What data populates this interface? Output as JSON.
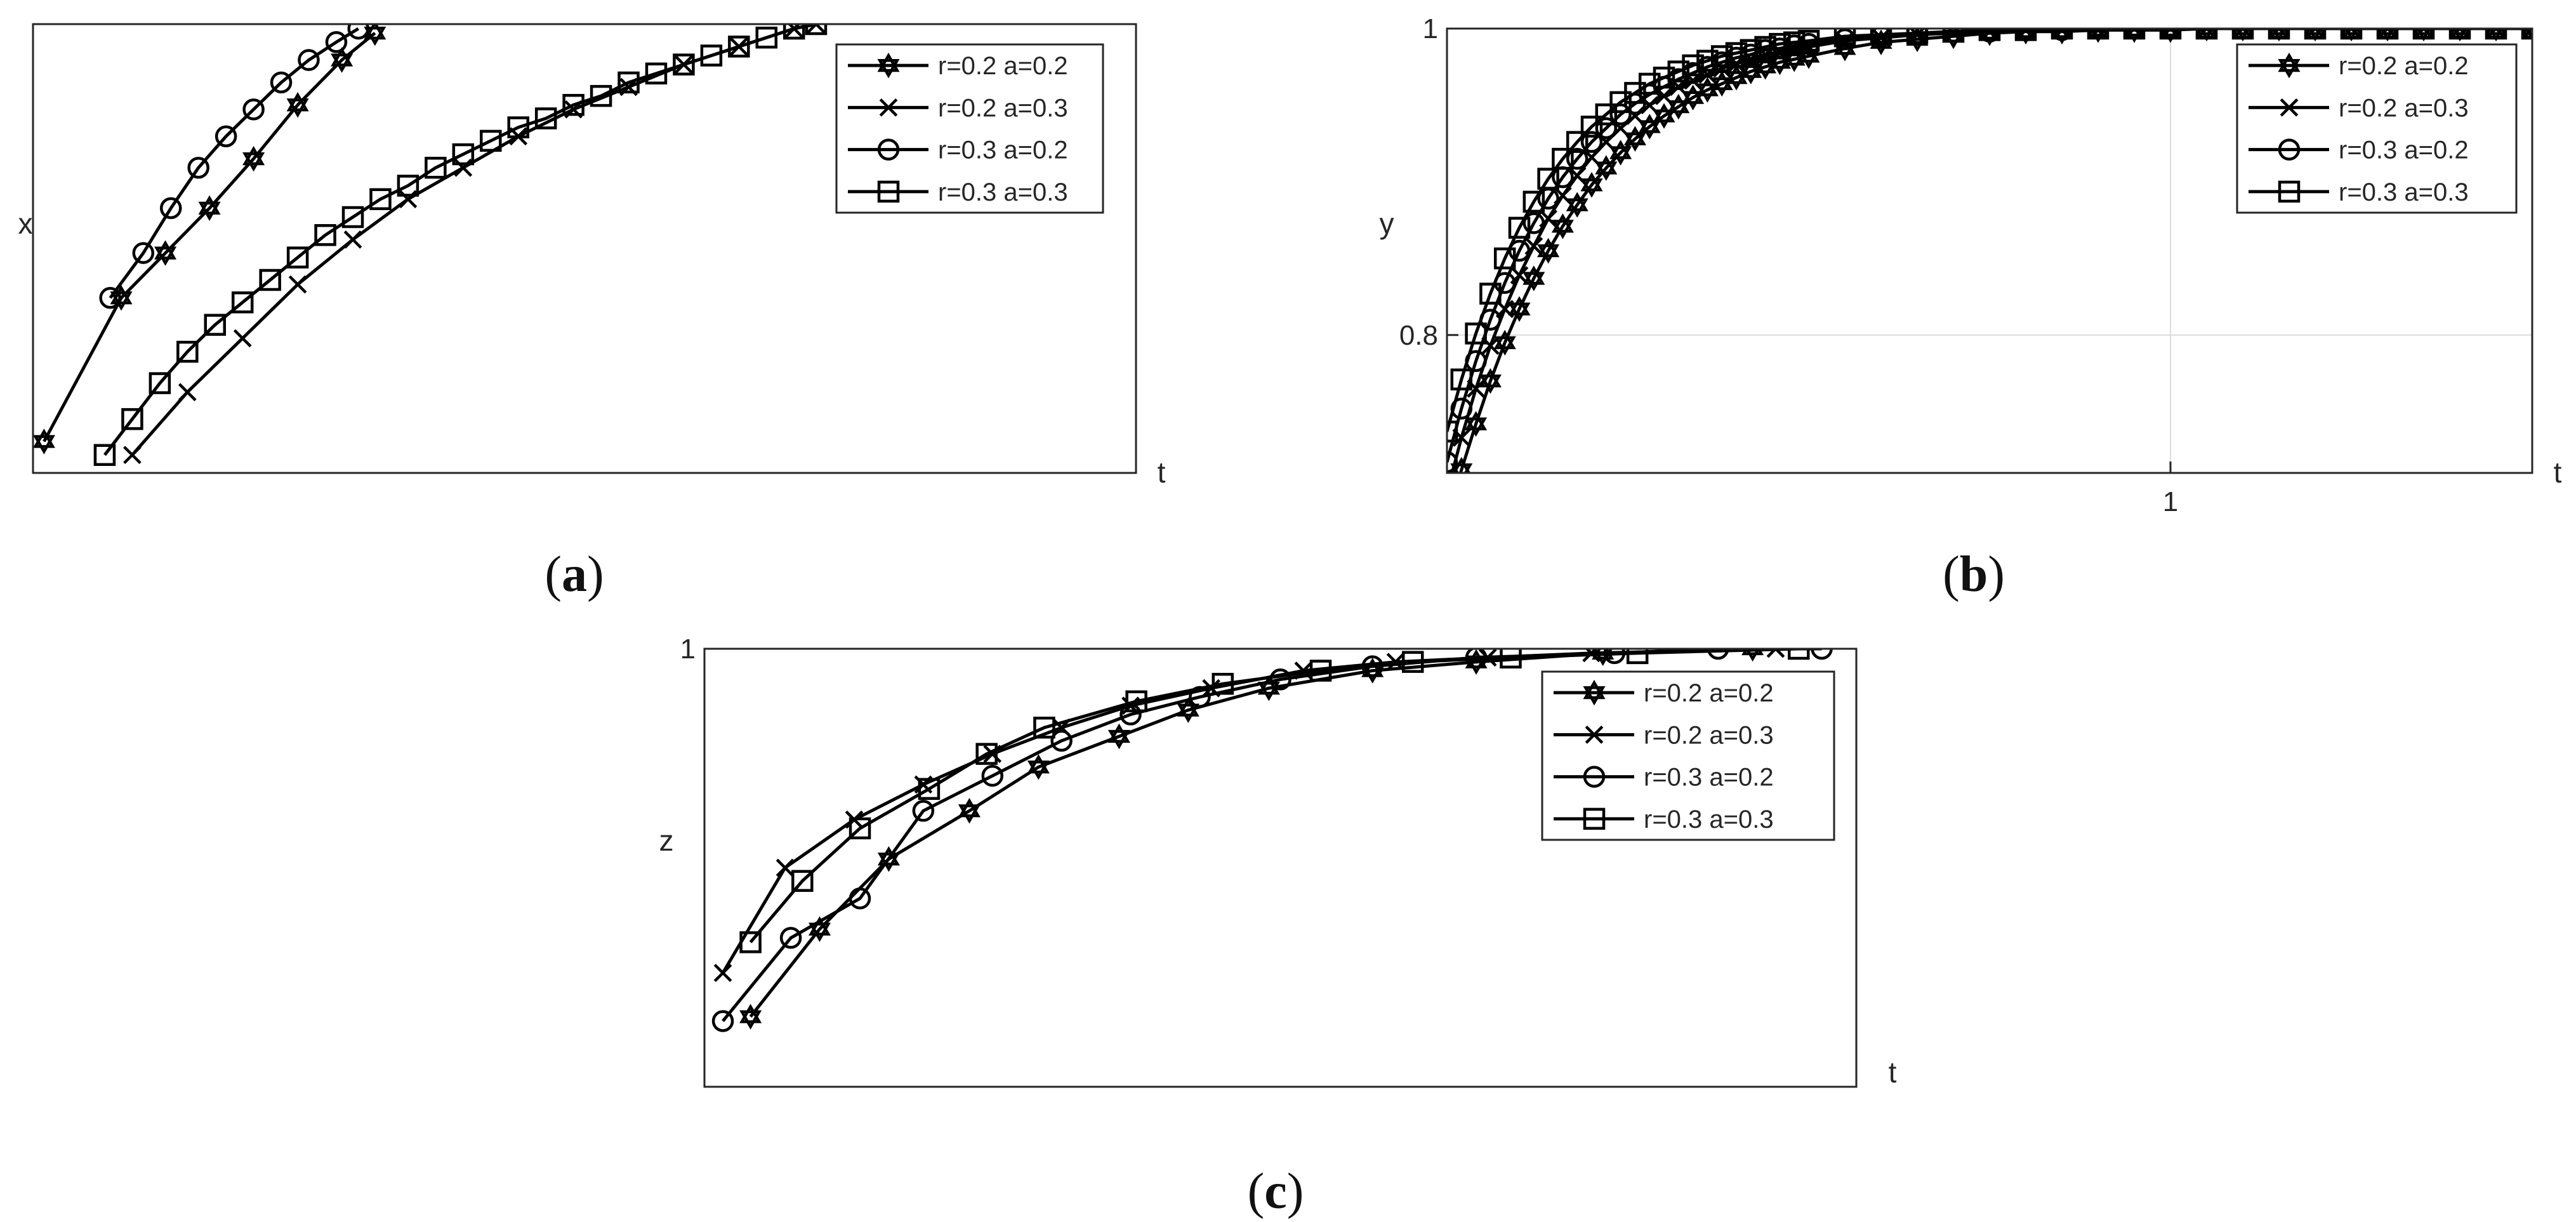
{
  "colors": {
    "line": "#000000",
    "frame": "#262626",
    "grid": "#dcdcdc",
    "text": "#262626",
    "background": "#ffffff"
  },
  "captions": {
    "a": {
      "open": "(",
      "letter": "a",
      "close": ")"
    },
    "b": {
      "open": "(",
      "letter": "b",
      "close": ")"
    },
    "c": {
      "open": "(",
      "letter": "c",
      "close": ")"
    }
  },
  "chart_data": [
    {
      "id": "a",
      "type": "line",
      "xlabel": "t",
      "ylabel": "x",
      "xlim": [
        0,
        1
      ],
      "ylim": [
        0,
        1
      ],
      "xticks": [],
      "yticks": [],
      "grid": false,
      "legend_position": "top-right",
      "series": [
        {
          "name": "r=0.2 a=0.2",
          "marker": "star",
          "x": [
            0.01,
            0.08,
            0.12,
            0.16,
            0.2,
            0.24,
            0.28,
            0.31
          ],
          "y": [
            0.07,
            0.39,
            0.49,
            0.59,
            0.7,
            0.82,
            0.92,
            0.98
          ]
        },
        {
          "name": "r=0.2 a=0.3",
          "marker": "x",
          "x": [
            0.09,
            0.14,
            0.19,
            0.24,
            0.29,
            0.34,
            0.39,
            0.44,
            0.49,
            0.54,
            0.59,
            0.64,
            0.69,
            0.71
          ],
          "y": [
            0.04,
            0.18,
            0.3,
            0.42,
            0.52,
            0.61,
            0.68,
            0.75,
            0.81,
            0.86,
            0.91,
            0.95,
            0.99,
            1.0
          ]
        },
        {
          "name": "r=0.3 a=0.2",
          "marker": "circle",
          "x": [
            0.07,
            0.1,
            0.125,
            0.15,
            0.175,
            0.2,
            0.225,
            0.25,
            0.275,
            0.295
          ],
          "y": [
            0.39,
            0.49,
            0.59,
            0.68,
            0.75,
            0.81,
            0.87,
            0.92,
            0.96,
            0.99
          ]
        },
        {
          "name": "r=0.3 a=0.3",
          "marker": "square",
          "x": [
            0.065,
            0.09,
            0.115,
            0.14,
            0.165,
            0.19,
            0.215,
            0.24,
            0.265,
            0.29,
            0.315,
            0.34,
            0.365,
            0.39,
            0.415,
            0.44,
            0.465,
            0.49,
            0.515,
            0.54,
            0.565,
            0.59,
            0.615,
            0.64,
            0.665,
            0.69,
            0.71
          ],
          "y": [
            0.04,
            0.12,
            0.2,
            0.27,
            0.33,
            0.38,
            0.43,
            0.48,
            0.53,
            0.57,
            0.61,
            0.64,
            0.68,
            0.71,
            0.74,
            0.77,
            0.79,
            0.82,
            0.84,
            0.87,
            0.89,
            0.91,
            0.93,
            0.95,
            0.97,
            0.99,
            1.0
          ]
        }
      ]
    },
    {
      "id": "b",
      "type": "line",
      "xlabel": "t",
      "ylabel": "y",
      "xlim": [
        0,
        1.5
      ],
      "ylim": [
        0.71,
        1
      ],
      "xticks": [
        1
      ],
      "yticks": [
        0.8,
        1
      ],
      "grid": true,
      "legend_position": "top-right",
      "series": [
        {
          "name": "r=0.2 a=0.2",
          "marker": "star",
          "x": [
            0,
            0.02,
            0.04,
            0.06,
            0.08,
            0.1,
            0.12,
            0.14,
            0.16,
            0.18,
            0.2,
            0.22,
            0.24,
            0.26,
            0.28,
            0.3,
            0.32,
            0.34,
            0.36,
            0.38,
            0.4,
            0.42,
            0.44,
            0.46,
            0.48,
            0.5,
            0.55,
            0.6,
            0.65,
            0.7,
            0.75,
            0.8,
            0.85,
            0.9,
            0.95,
            1.0,
            1.05,
            1.1,
            1.15,
            1.2,
            1.25,
            1.3,
            1.35,
            1.4,
            1.45,
            1.5
          ],
          "y": [
            0.677,
            0.712,
            0.742,
            0.77,
            0.795,
            0.817,
            0.837,
            0.855,
            0.871,
            0.885,
            0.898,
            0.909,
            0.919,
            0.928,
            0.936,
            0.943,
            0.949,
            0.955,
            0.96,
            0.964,
            0.968,
            0.972,
            0.975,
            0.978,
            0.98,
            0.982,
            0.987,
            0.991,
            0.993,
            0.995,
            0.997,
            0.998,
            0.998,
            0.999,
            0.999,
            0.999,
            1.0,
            1.0,
            1.0,
            1.0,
            1.0,
            1.0,
            1.0,
            1.0,
            1.0,
            1.0
          ]
        },
        {
          "name": "r=0.2 a=0.3",
          "marker": "x",
          "x": [
            0,
            0.02,
            0.04,
            0.06,
            0.08,
            0.1,
            0.12,
            0.14,
            0.16,
            0.18,
            0.2,
            0.22,
            0.24,
            0.26,
            0.28,
            0.3,
            0.32,
            0.34,
            0.36,
            0.38,
            0.4,
            0.42,
            0.44,
            0.46,
            0.48,
            0.5,
            0.55,
            0.6,
            0.65,
            0.7,
            0.75,
            0.8,
            0.85,
            0.9,
            0.95,
            1.0,
            1.05,
            1.1,
            1.15,
            1.2,
            1.25,
            1.3,
            1.35,
            1.4,
            1.45,
            1.5
          ],
          "y": [
            0.697,
            0.733,
            0.765,
            0.793,
            0.817,
            0.839,
            0.858,
            0.876,
            0.891,
            0.904,
            0.916,
            0.926,
            0.935,
            0.943,
            0.95,
            0.956,
            0.962,
            0.966,
            0.97,
            0.974,
            0.977,
            0.98,
            0.983,
            0.985,
            0.987,
            0.988,
            0.992,
            0.994,
            0.996,
            0.997,
            0.998,
            0.999,
            0.999,
            0.999,
            1.0,
            1.0,
            1.0,
            1.0,
            1.0,
            1.0,
            1.0,
            1.0,
            1.0,
            1.0,
            1.0,
            1.0
          ]
        },
        {
          "name": "r=0.3 a=0.2",
          "marker": "circle",
          "x": [
            0,
            0.02,
            0.04,
            0.06,
            0.08,
            0.1,
            0.12,
            0.14,
            0.16,
            0.18,
            0.2,
            0.22,
            0.24,
            0.26,
            0.28,
            0.3,
            0.32,
            0.34,
            0.36,
            0.38,
            0.4,
            0.42,
            0.44,
            0.46,
            0.48,
            0.5,
            0.55,
            0.6,
            0.65,
            0.7,
            0.75,
            0.8,
            0.85,
            0.9,
            0.95,
            1.0,
            1.05,
            1.1,
            1.15,
            1.2,
            1.25,
            1.3,
            1.35,
            1.4,
            1.45,
            1.5
          ],
          "y": [
            0.717,
            0.752,
            0.783,
            0.81,
            0.834,
            0.855,
            0.873,
            0.889,
            0.903,
            0.915,
            0.926,
            0.935,
            0.944,
            0.951,
            0.957,
            0.962,
            0.967,
            0.971,
            0.975,
            0.978,
            0.981,
            0.983,
            0.986,
            0.987,
            0.989,
            0.99,
            0.993,
            0.995,
            0.997,
            0.998,
            0.998,
            0.999,
            0.999,
            1.0,
            1.0,
            1.0,
            1.0,
            1.0,
            1.0,
            1.0,
            1.0,
            1.0,
            1.0,
            1.0,
            1.0,
            1.0
          ]
        },
        {
          "name": "r=0.3 a=0.3",
          "marker": "square",
          "x": [
            0,
            0.02,
            0.04,
            0.06,
            0.08,
            0.1,
            0.12,
            0.14,
            0.16,
            0.18,
            0.2,
            0.22,
            0.24,
            0.26,
            0.28,
            0.3,
            0.32,
            0.34,
            0.36,
            0.38,
            0.4,
            0.42,
            0.44,
            0.46,
            0.48,
            0.5,
            0.55,
            0.6,
            0.65,
            0.7,
            0.75,
            0.8,
            0.85,
            0.9,
            0.95,
            1.0,
            1.05,
            1.1,
            1.15,
            1.2,
            1.25,
            1.3,
            1.35,
            1.4,
            1.45,
            1.5
          ],
          "y": [
            0.737,
            0.771,
            0.801,
            0.827,
            0.85,
            0.87,
            0.887,
            0.902,
            0.915,
            0.926,
            0.936,
            0.944,
            0.952,
            0.958,
            0.964,
            0.968,
            0.972,
            0.976,
            0.979,
            0.982,
            0.984,
            0.986,
            0.988,
            0.99,
            0.991,
            0.992,
            0.995,
            0.996,
            0.997,
            0.998,
            0.999,
            0.999,
            1.0,
            1.0,
            1.0,
            1.0,
            1.0,
            1.0,
            1.0,
            1.0,
            1.0,
            1.0,
            1.0,
            1.0,
            1.0,
            1.0
          ]
        }
      ]
    },
    {
      "id": "c",
      "type": "line",
      "xlabel": "t",
      "ylabel": "z",
      "xlim": [
        0,
        1
      ],
      "ylim": [
        0,
        1
      ],
      "xticks": [],
      "yticks": [
        1
      ],
      "grid": false,
      "legend_position": "top-right",
      "series": [
        {
          "name": "r=0.2 a=0.2",
          "marker": "star",
          "x": [
            0.04,
            0.1,
            0.16,
            0.23,
            0.29,
            0.36,
            0.42,
            0.49,
            0.58,
            0.67,
            0.78,
            0.91
          ],
          "y": [
            0.16,
            0.36,
            0.52,
            0.63,
            0.73,
            0.8,
            0.86,
            0.91,
            0.95,
            0.97,
            0.99,
            1.0
          ]
        },
        {
          "name": "r=0.2 a=0.3",
          "marker": "x",
          "x": [
            0.016,
            0.07,
            0.13,
            0.19,
            0.25,
            0.31,
            0.37,
            0.44,
            0.52,
            0.6,
            0.68,
            0.77,
            0.93
          ],
          "y": [
            0.26,
            0.5,
            0.61,
            0.69,
            0.76,
            0.82,
            0.87,
            0.91,
            0.95,
            0.97,
            0.98,
            0.99,
            1.0
          ]
        },
        {
          "name": "r=0.3 a=0.2",
          "marker": "circle",
          "x": [
            0.016,
            0.075,
            0.135,
            0.19,
            0.25,
            0.31,
            0.37,
            0.43,
            0.5,
            0.58,
            0.67,
            0.79,
            0.88,
            0.97
          ],
          "y": [
            0.15,
            0.34,
            0.43,
            0.63,
            0.71,
            0.79,
            0.85,
            0.89,
            0.93,
            0.96,
            0.98,
            0.99,
            1.0,
            1.0
          ]
        },
        {
          "name": "r=0.3 a=0.3",
          "marker": "square",
          "x": [
            0.04,
            0.085,
            0.135,
            0.195,
            0.245,
            0.295,
            0.375,
            0.45,
            0.535,
            0.615,
            0.7,
            0.81,
            0.95
          ],
          "y": [
            0.33,
            0.47,
            0.59,
            0.68,
            0.76,
            0.82,
            0.88,
            0.92,
            0.95,
            0.97,
            0.98,
            0.99,
            1.0
          ]
        }
      ]
    }
  ]
}
